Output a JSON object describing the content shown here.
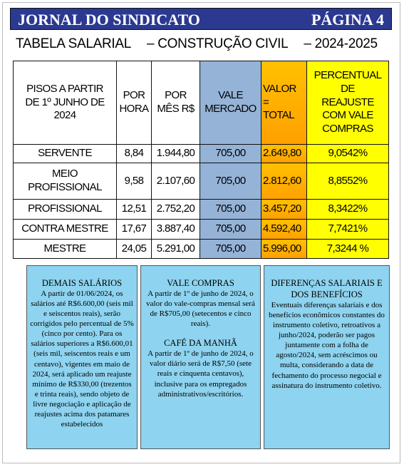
{
  "header": {
    "title": "JORNAL DO SINDICATO",
    "page": "PÁGINA 4"
  },
  "subtitle": [
    "TABELA SALARIAL",
    "– CONSTRUÇÃO CIVIL",
    "– 2024-2025"
  ],
  "table": {
    "columns": [
      "PISOS A PARTIR\nDE 1º JUNHO DE\n2024",
      "POR\nHORA",
      "POR\nMÊS R$",
      "VALE\nMERCADO",
      "VALOR\n=\nTOTAL",
      "PERCENTUAL\nDE\nREAJUSTE\nCOM VALE\nCOMPRAS"
    ],
    "rows": [
      [
        "SERVENTE",
        "8,84",
        "1.944,80",
        "705,00",
        "2.649,80",
        "9,0542%"
      ],
      [
        "MEIO\nPROFISSIONAL",
        "9,58",
        "2.107,60",
        "705,00",
        "2.812,60",
        "8,8552%"
      ],
      [
        "PROFISSIONAL",
        "12,51",
        "2.752,20",
        "705,00",
        "3.457,20",
        "8,3422%"
      ],
      [
        "CONTRA MESTRE",
        "17,67",
        "3.887,40",
        "705,00",
        "4.592,40",
        "7,7421%"
      ],
      [
        "MESTRE",
        "24,05",
        "5.291,00",
        "705,00",
        "5.996,00",
        "7,3244 %"
      ]
    ]
  },
  "boxes": [
    [
      {
        "title": "DEMAIS SALÁRIOS",
        "text": "A partir de 01/06/2024, os salários até R$6.600,00 (seis mil e seiscentos reais), serão corrigidos pelo percentual de 5% (cinco por cento). Para os salários superiores a R$6.600,01 (seis mil, seiscentos reais e um centavo), vigentes em maio de 2024, será aplicado um reajuste mínimo de R$330,00 (trezentos e trinta reais), sendo objeto de livre negociação e aplicação de reajustes acima dos patamares estabelecidos"
      }
    ],
    [
      {
        "title": "VALE COMPRAS",
        "text": "A partir de 1º de junho de 2024, o valor do vale-compras mensal será de R$705,00 (setecentos e cinco reais)."
      },
      {
        "title": "CAFÉ DA MANHÃ",
        "text": "A partir de 1º de junho de 2024, o valor diário será de R$7,50 (sete reais e cinquenta centavos), inclusive para os empregados administrativos/escritórios."
      }
    ],
    [
      {
        "title": "DIFERENÇAS SALARIAIS E DOS BENEFÍCIOS",
        "text": "Eventuais diferenças salariais e dos benefícios econômicos constantes do instrumento coletivo, retroativos a junho/2024, poderão ser pagos juntamente com a folha de agosto/2024, sem acréscimos ou multa, considerando a data de fechamento do processo negocial e assinatura do instrumento coletivo."
      }
    ]
  ]
}
